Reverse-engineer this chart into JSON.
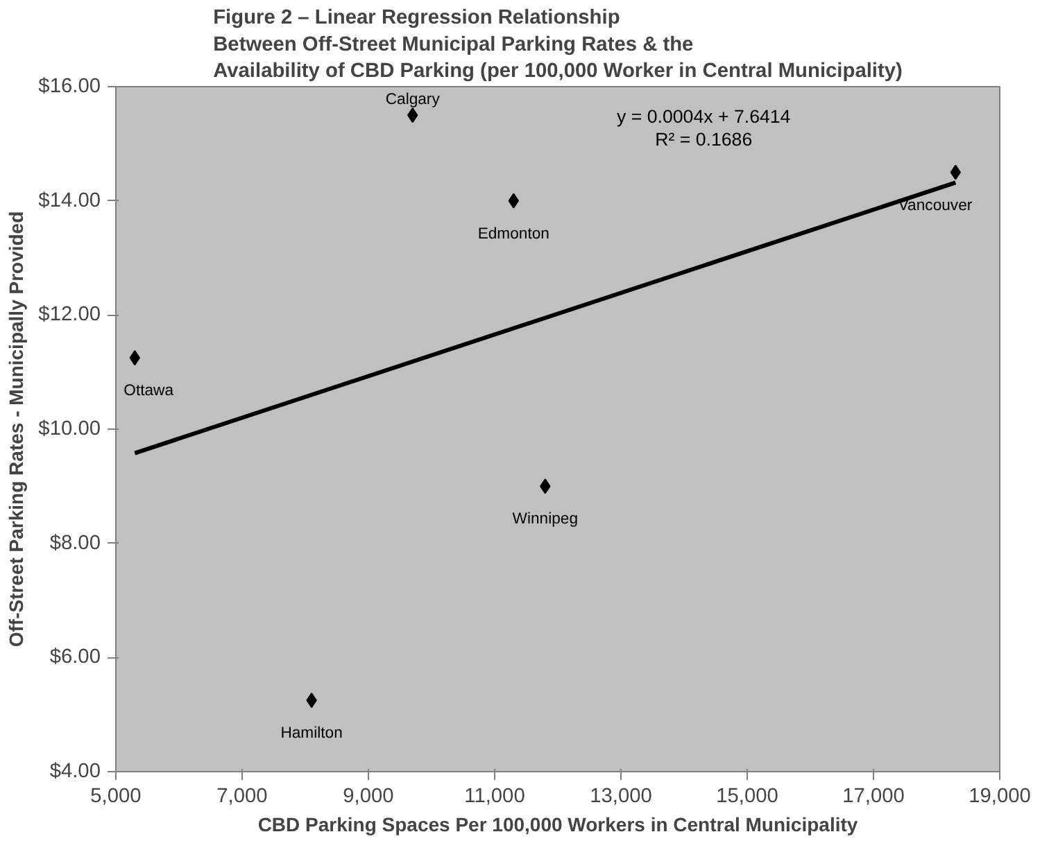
{
  "chart_data": {
    "type": "scatter",
    "title": "Figure 2 – Linear Regression Relationship\nBetween Off-Street Municipal Parking Rates & the\nAvailability of CBD Parking (per 100,000 Worker in Central Municipality)",
    "xlabel": "CBD Parking Spaces Per 100,000 Workers in Central Municipality",
    "ylabel": "Off-Street Parking Rates - Municipally Provided",
    "xlim": [
      5000,
      19000
    ],
    "ylim": [
      4,
      16
    ],
    "xticks": [
      {
        "value": 5000,
        "label": "5,000"
      },
      {
        "value": 7000,
        "label": "7,000"
      },
      {
        "value": 9000,
        "label": "9,000"
      },
      {
        "value": 11000,
        "label": "11,000"
      },
      {
        "value": 13000,
        "label": "13,000"
      },
      {
        "value": 15000,
        "label": "15,000"
      },
      {
        "value": 17000,
        "label": "17,000"
      },
      {
        "value": 19000,
        "label": "19,000"
      }
    ],
    "yticks": [
      {
        "value": 4,
        "label": "$4.00"
      },
      {
        "value": 6,
        "label": "$6.00"
      },
      {
        "value": 8,
        "label": "$8.00"
      },
      {
        "value": 10,
        "label": "$10.00"
      },
      {
        "value": 12,
        "label": "$12.00"
      },
      {
        "value": 14,
        "label": "$14.00"
      },
      {
        "value": 16,
        "label": "$16.00"
      }
    ],
    "grid": false,
    "series": [
      {
        "color": "#000000",
        "marker": "diamond",
        "x": [
          9700,
          11300,
          5300,
          18300,
          11800,
          8100
        ],
        "values": [
          15.5,
          14.0,
          11.25,
          14.5,
          9.0,
          5.25
        ],
        "value_labels": [
          "Calgary",
          "Edmonton",
          "Ottawa",
          "Vancouver",
          "Winnipeg",
          "Hamilton"
        ]
      },
      {
        "type": "line",
        "color": "#000000",
        "marker": "none",
        "x": [
          5300,
          18300
        ],
        "values": [
          9.58,
          14.32
        ]
      }
    ],
    "annotations": [
      "y = 0.0004x + 7.6414\nR² = 0.1686"
    ]
  }
}
